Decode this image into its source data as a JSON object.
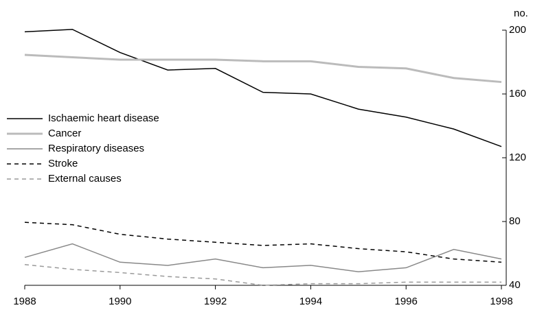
{
  "chart_data": {
    "type": "line",
    "y_unit_label": "no.",
    "x": [
      1988,
      1989,
      1990,
      1991,
      1992,
      1993,
      1994,
      1995,
      1996,
      1997,
      1998
    ],
    "series": [
      {
        "name": "Ischaemic heart disease",
        "color": "#000000",
        "width": 1.5,
        "dash": false,
        "values": [
          199,
          200.5,
          186,
          175,
          176,
          161,
          160,
          150.5,
          145.5,
          138,
          127
        ]
      },
      {
        "name": "Cancer",
        "color": "#bbbbbb",
        "width": 3,
        "dash": false,
        "values": [
          184.5,
          183,
          181.5,
          181.5,
          181.5,
          180.5,
          180.5,
          177,
          176,
          170,
          167.5
        ]
      },
      {
        "name": "Respiratory diseases",
        "color": "#888888",
        "width": 1.5,
        "dash": false,
        "values": [
          57.5,
          66,
          54.5,
          52.5,
          56.5,
          51,
          52.5,
          48.5,
          51,
          62.5,
          56.5
        ]
      },
      {
        "name": "Stroke",
        "color": "#000000",
        "width": 1.5,
        "dash": true,
        "values": [
          79.5,
          78,
          72,
          69,
          67,
          65,
          66,
          63,
          61,
          56.5,
          54.5
        ]
      },
      {
        "name": "External causes",
        "color": "#999999",
        "width": 1.5,
        "dash": true,
        "values": [
          53,
          50,
          48,
          45.5,
          44,
          40,
          41,
          41,
          42,
          42,
          42
        ]
      }
    ],
    "xlim": [
      1988,
      1998
    ],
    "xticks": [
      1988,
      1990,
      1992,
      1994,
      1996,
      1998
    ],
    "ylim": [
      40,
      200
    ],
    "yticks": [
      40,
      80,
      120,
      160,
      200
    ],
    "y_axis_side": "right",
    "legend": "left"
  }
}
